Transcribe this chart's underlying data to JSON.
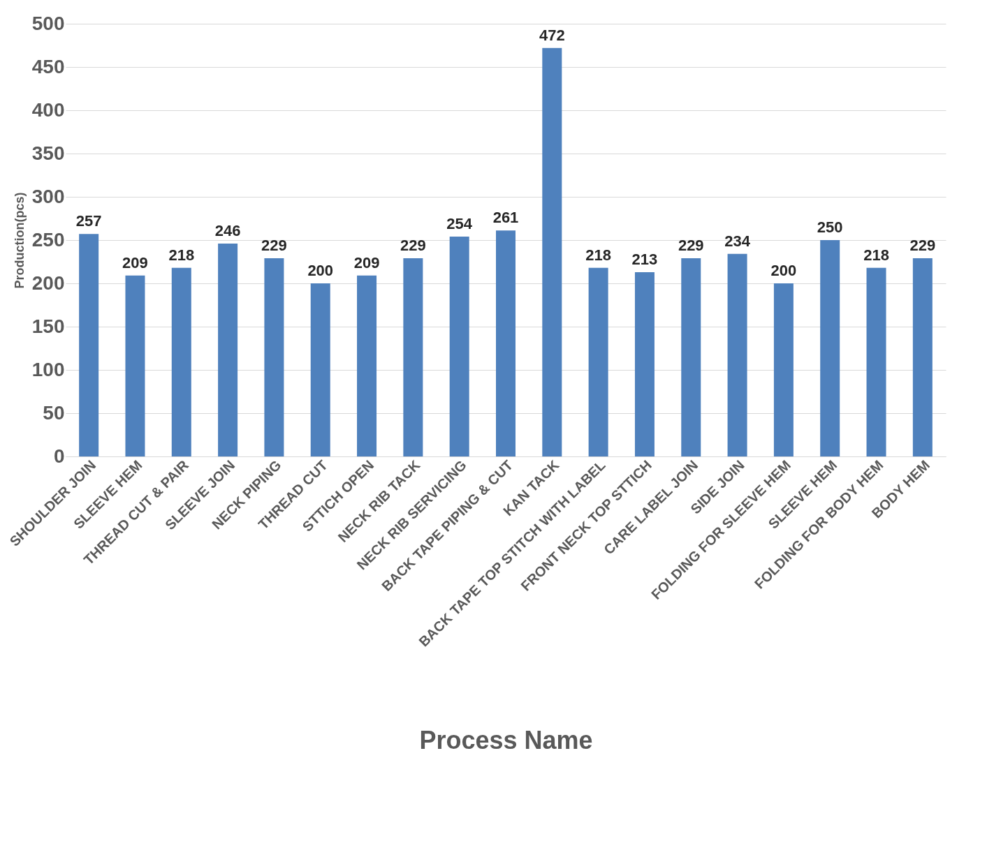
{
  "chart_data": {
    "type": "bar",
    "xlabel": "Process Name",
    "ylabel": "Production(pcs)",
    "categories": [
      "SHOULDER JOIN",
      "SLEEVE HEM",
      "THREAD CUT & PAIR",
      "SLEEVE JOIN",
      "NECK PIPING",
      "THREAD CUT",
      "STTICH OPEN",
      "NECK RIB TACK",
      "NECK RIB SERVICING",
      "BACK TAPE PIPING & CUT",
      "KAN TACK",
      "BACK TAPE TOP STITCH WITH LABEL",
      "FRONT NECK TOP STTICH",
      "CARE LABEL JOIN",
      "SIDE JOIN",
      "FOLDING FOR SLEEVE HEM",
      "SLEEVE HEM",
      "FOLDING FOR BODY  HEM",
      "BODY HEM"
    ],
    "values": [
      257,
      209,
      218,
      246,
      229,
      200,
      209,
      229,
      254,
      261,
      472,
      218,
      213,
      229,
      234,
      200,
      250,
      218,
      229
    ],
    "color": "#4f81bd",
    "ylim": [
      0,
      500
    ],
    "yticks": [
      0,
      50,
      100,
      150,
      200,
      250,
      300,
      350,
      400,
      450,
      500
    ],
    "grid": "y",
    "data_labels": true
  }
}
